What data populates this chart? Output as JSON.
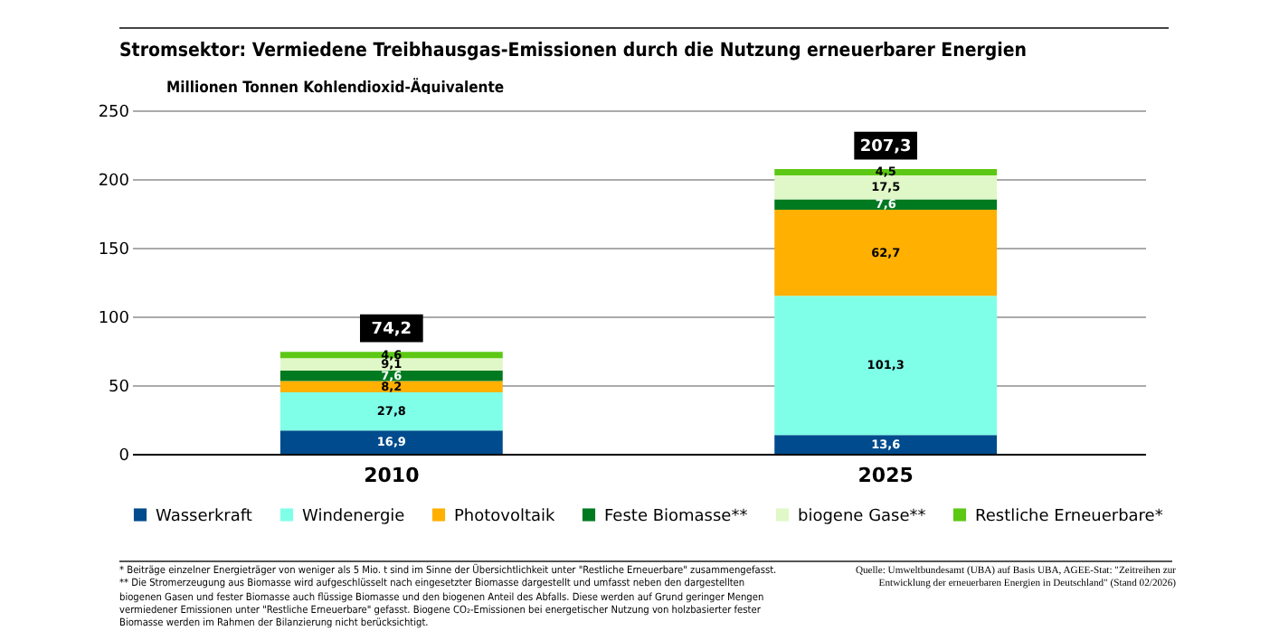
{
  "chart_data": {
    "type": "bar",
    "stacked": true,
    "title": "Stromsektor: Vermiedene Treibhausgas-Emissionen durch die Nutzung erneuerbarer Energien",
    "ylabel": "Millionen Tonnen Kohlendioxid-Äquivalente",
    "categories": [
      "2010",
      "2025"
    ],
    "series": [
      {
        "name": "Wasserkraft",
        "color": "#004b8d",
        "values": [
          16.9,
          13.6
        ],
        "value_labels": [
          "16,9",
          "13,6"
        ]
      },
      {
        "name": "Windenergie",
        "color": "#80ffe8",
        "values": [
          27.8,
          101.3
        ],
        "value_labels": [
          "27,8",
          "101,3"
        ]
      },
      {
        "name": "Photovoltaik",
        "color": "#ffb000",
        "values": [
          8.2,
          62.7
        ],
        "value_labels": [
          "8,2",
          "62,7"
        ]
      },
      {
        "name": "Feste Biomasse**",
        "color": "#007a20",
        "values": [
          7.6,
          7.6
        ],
        "value_labels": [
          "7,6",
          "7,6"
        ]
      },
      {
        "name": "biogene Gase**",
        "color": "#e0f8c8",
        "values": [
          9.1,
          17.5
        ],
        "value_labels": [
          "9,1",
          "17,5"
        ]
      },
      {
        "name": "Restliche Erneuerbare*",
        "color": "#5cc814",
        "values": [
          4.6,
          4.5
        ],
        "value_labels": [
          "4,6",
          "4,5"
        ]
      }
    ],
    "totals": [
      "74,2",
      "207,3"
    ],
    "ylim": [
      0,
      250
    ],
    "yticks": [
      0,
      50,
      100,
      150,
      200,
      250
    ],
    "grid": "y",
    "legend": "bottom",
    "annotations": [
      "* Beiträge einzelner Energieträger von weniger als 5 Mio. t sind im Sinne der Übersichtlichkeit unter \"Restliche Erneuerbare\" zusammengefasst.",
      "** Die Stromerzeugung aus Biomasse wird aufgeschlüsselt nach eingesetzter Biomasse dargestellt und umfasst neben den dargestellten biogenen Gasen und fester Biomasse auch flüssige Biomasse und den biogenen Anteil des Abfalls. Diese werden auf Grund geringer Mengen vermiedener Emissionen unter \"Restliche Erneuerbare\" gefasst. Biogene CO₂-Emissionen bei energetischer Nutzung von holzbasierter fester Biomasse werden im Rahmen der Bilanzierung nicht berücksichtigt.",
      "Quelle: Umweltbundesamt (UBA) auf Basis UBA, AGEE-Stat: \"Zeitreihen zur Entwicklung der erneuerbaren Energien in Deutschland\" (Stand 02/2026)"
    ]
  }
}
